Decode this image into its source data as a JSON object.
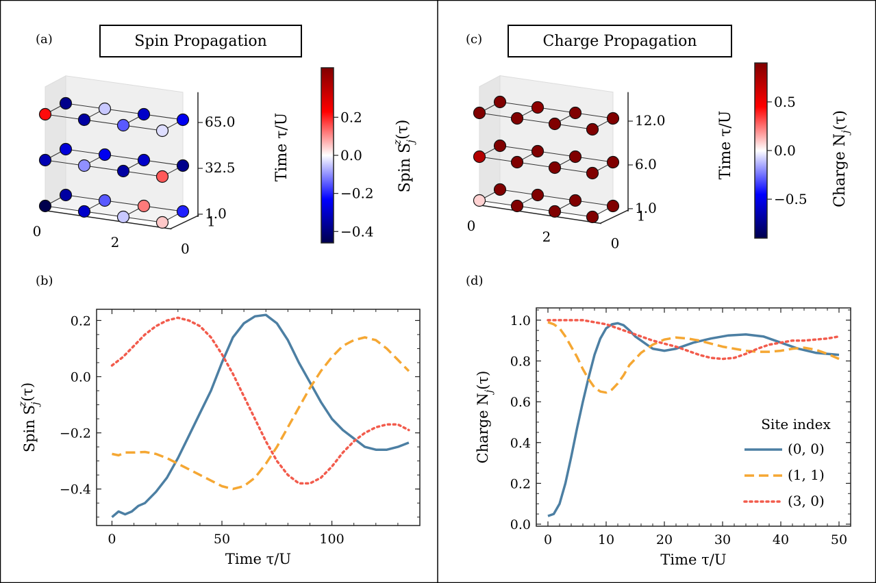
{
  "figure": {
    "divider_color": "#000000"
  },
  "panel_a": {
    "label": "(a)",
    "title": "Spin Propagation",
    "z_label": "Time τ/U",
    "z_ticks": [
      "1.0",
      "32.5",
      "65.0"
    ],
    "x_ticks": [
      "0",
      "2"
    ],
    "y_ticks": [
      "0",
      "1"
    ],
    "colorbar": {
      "label": "Spin S_j^z(τ)",
      "ticks": [
        "0.2",
        "0.0",
        "−0.2",
        "−0.4"
      ],
      "range": [
        -0.46,
        0.24
      ],
      "tick_values": [
        0.2,
        0.0,
        -0.2,
        -0.4
      ]
    },
    "layers": [
      {
        "time": "1.0",
        "values": [
          [
            -0.46,
            -0.3,
            -0.05,
            0.05
          ],
          [
            -0.35,
            -0.15,
            0.12,
            -0.2
          ]
        ]
      },
      {
        "time": "32.5",
        "values": [
          [
            -0.33,
            -0.1,
            -0.35,
            0.15
          ],
          [
            -0.28,
            -0.25,
            -0.3,
            -0.38
          ]
        ]
      },
      {
        "time": "65.0",
        "values": [
          [
            0.22,
            -0.35,
            -0.15,
            -0.03
          ],
          [
            -0.38,
            -0.05,
            -0.3,
            -0.25
          ]
        ]
      }
    ]
  },
  "panel_c": {
    "label": "(c)",
    "title": "Charge Propagation",
    "z_label": "Time τ/U",
    "z_ticks": [
      "1.0",
      "6.0",
      "12.0"
    ],
    "x_ticks": [
      "0",
      "2"
    ],
    "y_ticks": [
      "0",
      "1"
    ],
    "colorbar": {
      "label": "Charge N_j(τ)",
      "ticks": [
        "0.5",
        "0.0",
        "−0.5"
      ],
      "range": [
        -0.9,
        0.9
      ],
      "tick_values": [
        0.5,
        0.0,
        -0.5
      ]
    },
    "layers": [
      {
        "time": "1.0",
        "values": [
          [
            0.08,
            0.9,
            0.9,
            0.9
          ],
          [
            0.9,
            0.9,
            0.9,
            0.9
          ]
        ]
      },
      {
        "time": "6.0",
        "values": [
          [
            0.72,
            0.9,
            0.9,
            0.9
          ],
          [
            0.9,
            0.9,
            0.9,
            0.9
          ]
        ]
      },
      {
        "time": "12.0",
        "values": [
          [
            0.9,
            0.9,
            0.9,
            0.9
          ],
          [
            0.9,
            0.85,
            0.9,
            0.9
          ]
        ]
      }
    ]
  },
  "chart_data": [
    {
      "panel": "(b)",
      "type": "line",
      "xlabel": "Time τ/U",
      "ylabel": "Spin S_j^z(τ)",
      "xlim": [
        -7,
        140
      ],
      "ylim": [
        -0.53,
        0.24
      ],
      "xticks": [
        0,
        50,
        100
      ],
      "yticks": [
        0.2,
        0.0,
        -0.2,
        -0.4
      ],
      "grid": false,
      "series": [
        {
          "style": "solid",
          "color": "#4c7fa3",
          "x": [
            0,
            3,
            6,
            9,
            12,
            15,
            20,
            25,
            30,
            35,
            40,
            45,
            50,
            55,
            60,
            65,
            70,
            75,
            80,
            85,
            90,
            95,
            100,
            105,
            110,
            115,
            120,
            125,
            130,
            135
          ],
          "y": [
            -0.5,
            -0.48,
            -0.49,
            -0.48,
            -0.46,
            -0.45,
            -0.41,
            -0.36,
            -0.29,
            -0.21,
            -0.13,
            -0.05,
            0.05,
            0.14,
            0.19,
            0.215,
            0.22,
            0.19,
            0.13,
            0.05,
            -0.02,
            -0.09,
            -0.15,
            -0.19,
            -0.22,
            -0.25,
            -0.26,
            -0.26,
            -0.25,
            -0.235
          ]
        },
        {
          "style": "dashed",
          "color": "#f5a733",
          "x": [
            0,
            3,
            6,
            10,
            15,
            20,
            25,
            30,
            35,
            40,
            45,
            50,
            55,
            60,
            65,
            70,
            75,
            80,
            85,
            90,
            95,
            100,
            105,
            110,
            115,
            120,
            125,
            130,
            135
          ],
          "y": [
            -0.275,
            -0.28,
            -0.27,
            -0.27,
            -0.268,
            -0.275,
            -0.29,
            -0.31,
            -0.33,
            -0.35,
            -0.37,
            -0.39,
            -0.4,
            -0.39,
            -0.36,
            -0.31,
            -0.25,
            -0.18,
            -0.11,
            -0.04,
            0.02,
            0.07,
            0.11,
            0.13,
            0.14,
            0.13,
            0.1,
            0.06,
            0.02
          ]
        },
        {
          "style": "dotted",
          "color": "#f25b4c",
          "x": [
            0,
            5,
            10,
            15,
            20,
            25,
            30,
            35,
            40,
            45,
            50,
            55,
            60,
            65,
            70,
            75,
            80,
            85,
            90,
            95,
            100,
            105,
            110,
            115,
            120,
            125,
            130,
            135
          ],
          "y": [
            0.04,
            0.07,
            0.11,
            0.15,
            0.18,
            0.2,
            0.21,
            0.2,
            0.18,
            0.14,
            0.08,
            0.01,
            -0.07,
            -0.15,
            -0.23,
            -0.3,
            -0.35,
            -0.38,
            -0.38,
            -0.36,
            -0.32,
            -0.27,
            -0.23,
            -0.2,
            -0.18,
            -0.17,
            -0.17,
            -0.19
          ]
        }
      ]
    },
    {
      "panel": "(d)",
      "type": "line",
      "xlabel": "Time τ/U",
      "ylabel": "Charge N_j(τ)",
      "xlim": [
        -2,
        52
      ],
      "ylim": [
        -0.01,
        1.06
      ],
      "xticks": [
        0,
        10,
        20,
        30,
        40,
        50
      ],
      "yticks": [
        0.0,
        0.2,
        0.4,
        0.6,
        0.8,
        1.0
      ],
      "grid": false,
      "legend": {
        "title": "Site index",
        "position": "lower right",
        "entries": [
          "(0, 0)",
          "(1, 1)",
          "(3, 0)"
        ]
      },
      "series": [
        {
          "name": "(0, 0)",
          "style": "solid",
          "color": "#4c7fa3",
          "x": [
            0,
            1,
            2,
            3,
            4,
            5,
            6,
            7,
            8,
            9,
            10,
            11,
            12,
            13,
            14,
            15,
            16,
            17,
            18,
            20,
            22,
            25,
            28,
            31,
            34,
            37,
            40,
            43,
            46,
            50
          ],
          "y": [
            0.04,
            0.05,
            0.1,
            0.2,
            0.33,
            0.47,
            0.6,
            0.72,
            0.83,
            0.91,
            0.96,
            0.98,
            0.985,
            0.975,
            0.95,
            0.92,
            0.9,
            0.88,
            0.86,
            0.85,
            0.86,
            0.89,
            0.91,
            0.925,
            0.93,
            0.92,
            0.89,
            0.86,
            0.84,
            0.83
          ]
        },
        {
          "name": "(1, 1)",
          "style": "dashed",
          "color": "#f5a733",
          "x": [
            0,
            1,
            2,
            3,
            4,
            5,
            6,
            7,
            8,
            9,
            10,
            11,
            12,
            13,
            14,
            16,
            18,
            20,
            22,
            24,
            26,
            28,
            30,
            32,
            34,
            36,
            38,
            40,
            42,
            44,
            46,
            48,
            50
          ],
          "y": [
            0.99,
            0.98,
            0.96,
            0.92,
            0.87,
            0.82,
            0.76,
            0.71,
            0.67,
            0.65,
            0.645,
            0.66,
            0.69,
            0.73,
            0.78,
            0.84,
            0.88,
            0.905,
            0.915,
            0.91,
            0.9,
            0.885,
            0.87,
            0.86,
            0.85,
            0.845,
            0.845,
            0.85,
            0.86,
            0.865,
            0.855,
            0.835,
            0.81
          ]
        },
        {
          "name": "(3, 0)",
          "style": "dotted",
          "color": "#f25b4c",
          "x": [
            0,
            2,
            4,
            6,
            8,
            10,
            12,
            14,
            16,
            18,
            20,
            22,
            24,
            26,
            28,
            30,
            32,
            34,
            36,
            38,
            40,
            42,
            44,
            46,
            48,
            50
          ],
          "y": [
            1.0,
            1.0,
            1.0,
            1.0,
            0.99,
            0.98,
            0.96,
            0.94,
            0.92,
            0.9,
            0.885,
            0.87,
            0.85,
            0.83,
            0.815,
            0.81,
            0.815,
            0.835,
            0.86,
            0.88,
            0.89,
            0.9,
            0.9,
            0.905,
            0.91,
            0.92
          ]
        }
      ]
    }
  ]
}
